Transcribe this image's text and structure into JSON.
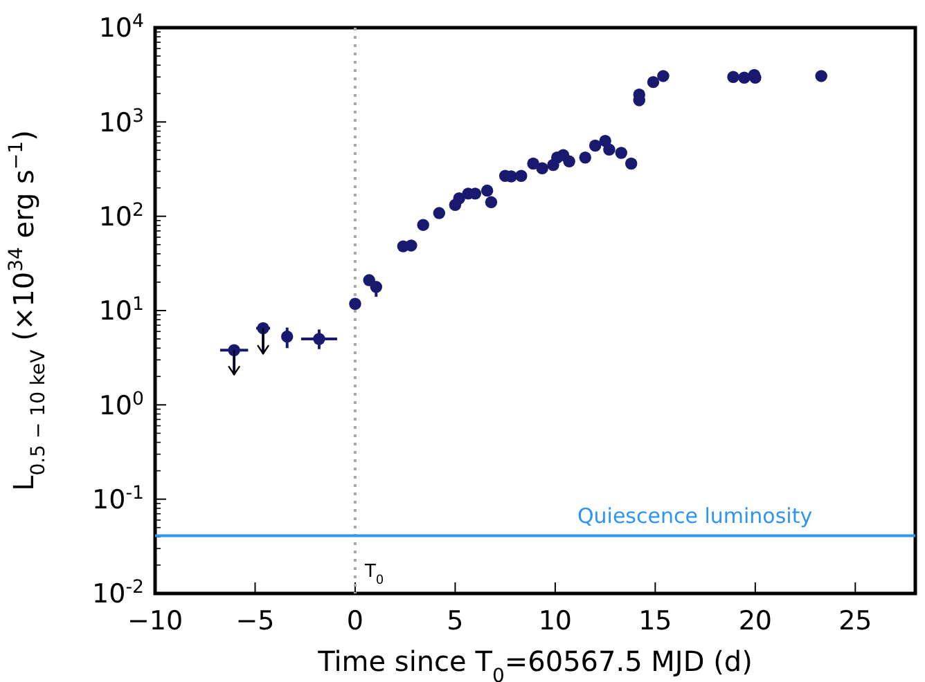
{
  "chart_data": {
    "type": "scatter",
    "xlabel": "Time since T$_{0}$=60567.5 MJD (d)",
    "ylabel": "L$_{0.5 − 10 keV}$ (×10$^{34}$ erg s$^{−1}$)",
    "xlim": [
      -10,
      28
    ],
    "ylim": [
      0.01,
      10000
    ],
    "log": "y",
    "xticks": [
      {
        "value": -10,
        "label": "−10"
      },
      {
        "value": -5,
        "label": "−5"
      },
      0,
      5,
      10,
      15,
      20,
      25
    ],
    "yticks": [
      {
        "value": 0.01,
        "label": "10$^{-2}$"
      },
      {
        "value": 0.1,
        "label": "10$^{-1}$"
      },
      {
        "value": 1,
        "label": "10$^{0}$"
      },
      {
        "value": 10,
        "label": "10$^{1}$"
      },
      {
        "value": 100,
        "label": "10$^{2}$"
      },
      {
        "value": 1000,
        "label": "10$^{3}$"
      },
      {
        "value": 10000,
        "label": "10$^{4}$"
      }
    ],
    "grid": false,
    "marker": "circle",
    "series": [
      {
        "color": "#191970",
        "x": [
          -6.05,
          -4.6
        ],
        "values": [
          3.8,
          6.5
        ],
        "xerrors": [
          0.7,
          0.35
        ],
        "errors": [
          [
            2.1,
            3.8
          ],
          [
            3.5,
            6.5
          ]
        ]
      },
      {
        "color": "#191970",
        "x": [
          -3.4,
          -1.8,
          0.0,
          0.7,
          1.05,
          2.4,
          2.8,
          3.4,
          4.2,
          5.0,
          5.2,
          5.65,
          6.0,
          6.6,
          6.8,
          7.5,
          7.8,
          8.3,
          8.9,
          9.35,
          9.9,
          10.1,
          10.4,
          10.7,
          11.5,
          12.0,
          12.5,
          12.7,
          13.3,
          13.8,
          14.2,
          14.2,
          14.9,
          15.4,
          18.9,
          19.45,
          19.95,
          20.0,
          23.3
        ],
        "values": [
          5.3,
          5.0,
          11.8,
          21,
          17.8,
          48,
          49,
          81,
          108,
          132,
          155,
          174,
          174,
          187,
          141,
          268,
          265,
          268,
          362,
          323,
          350,
          420,
          446,
          382,
          420,
          562,
          630,
          510,
          470,
          362,
          1700,
          1950,
          2650,
          3070,
          3000,
          2950,
          3150,
          2950,
          3070
        ],
        "xerrors": [
          null,
          0.9,
          null,
          null,
          null,
          null,
          null,
          null,
          null,
          null,
          null,
          null,
          null,
          null,
          null,
          null,
          null,
          null,
          null,
          null,
          null,
          null,
          null,
          null,
          null,
          null,
          null,
          null,
          null,
          null,
          null,
          null,
          null,
          null,
          null,
          null,
          null,
          null,
          null
        ],
        "errors": [
          [
            4.0,
            6.6
          ],
          [
            3.9,
            6.3
          ],
          null,
          null,
          [
            14,
            19
          ],
          null,
          null,
          null,
          null,
          null,
          null,
          null,
          null,
          null,
          null,
          null,
          null,
          null,
          null,
          null,
          null,
          null,
          null,
          null,
          null,
          null,
          null,
          null,
          null,
          null,
          null,
          null,
          null,
          null,
          null,
          null,
          null,
          null,
          null
        ]
      }
    ],
    "ref_lines": [
      {
        "axis": "x",
        "value": 0,
        "label": "T$_{0}$",
        "color": "#aaaaaa",
        "line_style": "dotted"
      },
      {
        "axis": "y",
        "value": 0.041,
        "label": "Quiescence luminosity",
        "color": "#2f95f5",
        "line_style": "solid"
      }
    ]
  }
}
